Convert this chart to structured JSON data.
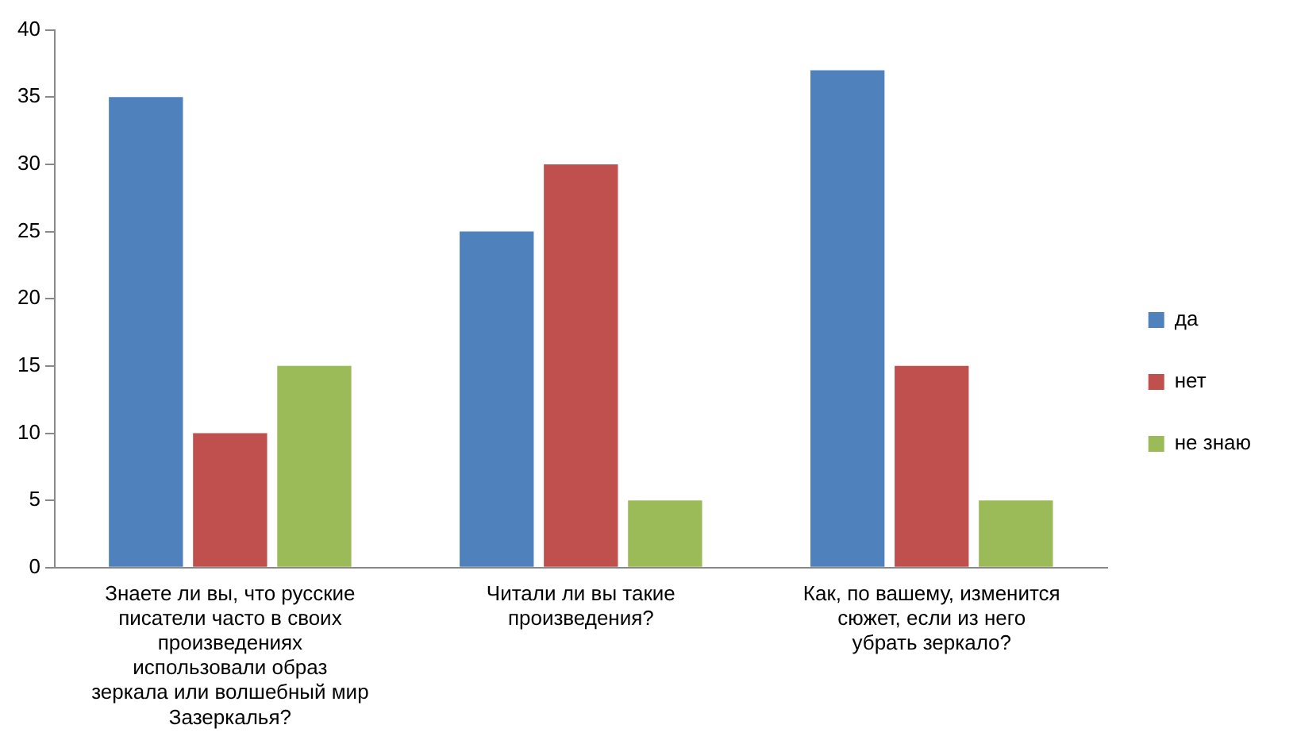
{
  "chart_data": {
    "type": "bar",
    "categories": [
      "Знаете ли вы, что русские писатели часто в своих произведениях использовали образ зеркала или волшебный мир Зазеркалья?",
      "Читали ли вы такие произведения?",
      "Как, по вашему, изменится сюжет, если из него убрать зеркало?"
    ],
    "series": [
      {
        "name": "да",
        "color": "#4f81bd",
        "values": [
          35,
          25,
          37
        ]
      },
      {
        "name": "нет",
        "color": "#c0504d",
        "values": [
          10,
          30,
          15
        ]
      },
      {
        "name": "не знаю",
        "color": "#9bbb59",
        "values": [
          15,
          5,
          5
        ]
      }
    ],
    "ylim": [
      0,
      40
    ],
    "yticks": [
      0,
      5,
      10,
      15,
      20,
      25,
      30,
      35,
      40
    ],
    "grid": false,
    "legend": "right"
  }
}
